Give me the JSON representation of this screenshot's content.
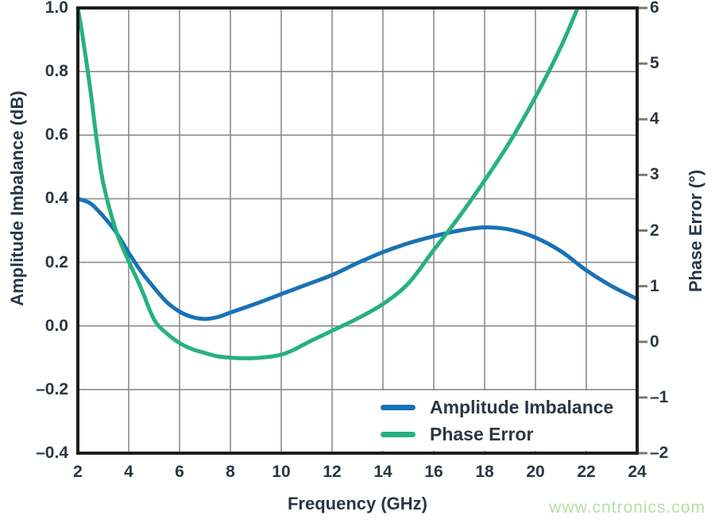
{
  "watermark": {
    "text": "www.cntronics.com",
    "color": "#b4dfa6"
  },
  "chart_data": {
    "type": "line",
    "title": "",
    "xlabel": "Frequency (GHz)",
    "ylabel_left": "Amplitude Imbalance (dB)",
    "ylabel_right": "Phase Error (°)",
    "xlim": [
      2,
      24
    ],
    "ylim_left": [
      -0.4,
      1.0
    ],
    "ylim_right": [
      -2,
      6
    ],
    "grid": true,
    "legend_position": "inside lower right",
    "x_ticks": [
      2,
      4,
      6,
      8,
      10,
      12,
      14,
      16,
      18,
      20,
      22,
      24
    ],
    "x_tick_labels": [
      "2",
      "4",
      "6",
      "8",
      "10",
      "12",
      "14",
      "16",
      "18",
      "20",
      "22",
      "24"
    ],
    "left_ticks": [
      1.0,
      0.8,
      0.6,
      0.4,
      0.2,
      0.0,
      -0.2,
      -0.4
    ],
    "left_tick_labels": [
      "1.0",
      "0.8",
      "0.6",
      "0.4",
      "0.2",
      "0.0",
      "–0.2",
      "–0.4"
    ],
    "right_ticks": [
      6,
      5,
      4,
      3,
      2,
      1,
      0,
      -1,
      -2
    ],
    "right_tick_labels": [
      "6",
      "5",
      "4",
      "3",
      "2",
      "1",
      "0",
      "–1",
      "–2"
    ],
    "colors": {
      "text": "#2b3644",
      "grid": "#8b8b8b",
      "spine": "#1c1c1c",
      "tick": "#7a7a7a",
      "background": "#ffffff"
    },
    "series": [
      {
        "name": "Amplitude Imbalance",
        "axis": "left",
        "color": "#1772b6",
        "x": [
          2,
          2.5,
          3,
          3.5,
          4,
          4.5,
          5,
          5.5,
          6,
          6.5,
          7,
          7.5,
          8,
          9,
          10,
          11,
          12,
          13,
          14,
          15,
          16,
          17,
          18,
          19,
          20,
          21,
          22,
          23,
          24
        ],
        "y": [
          0.4,
          0.385,
          0.345,
          0.295,
          0.23,
          0.17,
          0.12,
          0.075,
          0.045,
          0.028,
          0.022,
          0.028,
          0.042,
          0.07,
          0.1,
          0.13,
          0.16,
          0.198,
          0.232,
          0.26,
          0.282,
          0.3,
          0.31,
          0.303,
          0.278,
          0.235,
          0.175,
          0.125,
          0.085
        ]
      },
      {
        "name": "Phase Error",
        "axis": "right",
        "color": "#26b181",
        "x": [
          2,
          2.2,
          2.5,
          2.75,
          3,
          3.5,
          4,
          4.5,
          5,
          5.5,
          6,
          6.5,
          7,
          7.5,
          8,
          8.5,
          9,
          9.5,
          10,
          10.5,
          11,
          11.5,
          12,
          13,
          14,
          15,
          16,
          17,
          18,
          19,
          20,
          21,
          21.8
        ],
        "y": [
          6.0,
          5.45,
          4.5,
          3.6,
          2.85,
          2.0,
          1.45,
          0.95,
          0.4,
          0.15,
          -0.02,
          -0.13,
          -0.2,
          -0.26,
          -0.285,
          -0.295,
          -0.29,
          -0.27,
          -0.23,
          -0.14,
          -0.02,
          0.09,
          0.2,
          0.42,
          0.68,
          1.05,
          1.65,
          2.25,
          2.9,
          3.6,
          4.4,
          5.3,
          6.15
        ]
      }
    ]
  }
}
